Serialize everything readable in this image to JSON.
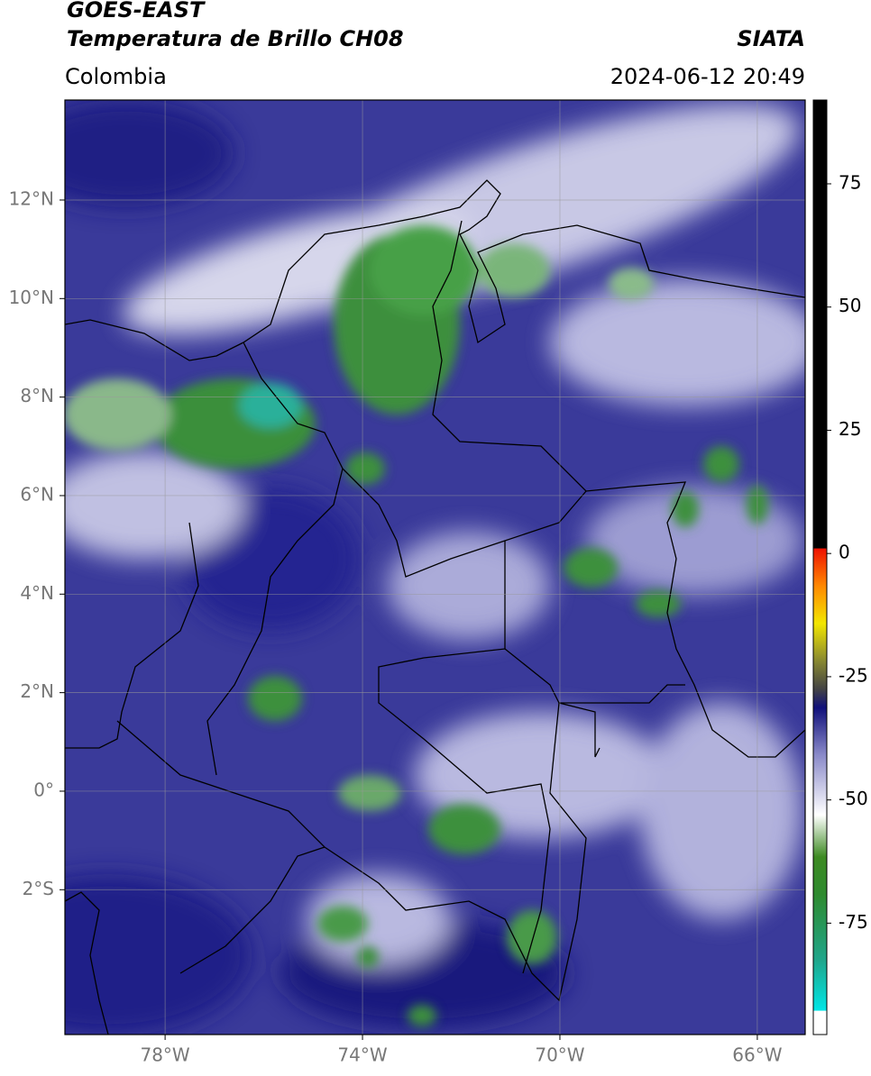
{
  "header": {
    "title": "GOES-EAST",
    "subtitle": "Temperatura de Brillo CH08",
    "source": "SIATA",
    "region": "Colombia",
    "datetime": "2024-06-12 20:49"
  },
  "map": {
    "xlim": [
      -80.03,
      -65.03
    ],
    "ylim": [
      -4.94,
      14.03
    ],
    "grid": true,
    "xticks": [
      {
        "value": -78,
        "label": "78°W"
      },
      {
        "value": -74,
        "label": "74°W"
      },
      {
        "value": -70,
        "label": "70°W"
      },
      {
        "value": -66,
        "label": "66°W"
      }
    ],
    "yticks": [
      {
        "value": 12,
        "label": "12°N"
      },
      {
        "value": 10,
        "label": "10°N"
      },
      {
        "value": 8,
        "label": "8°N"
      },
      {
        "value": 6,
        "label": "6°N"
      },
      {
        "value": 4,
        "label": "4°N"
      },
      {
        "value": 2,
        "label": "2°N"
      },
      {
        "value": 0,
        "label": "0°"
      },
      {
        "value": -2,
        "label": "2°S"
      }
    ]
  },
  "colorbar": {
    "lim": [
      -97.6,
      92
    ],
    "ticks": [
      75,
      50,
      25,
      0,
      -25,
      -50,
      -75
    ]
  }
}
